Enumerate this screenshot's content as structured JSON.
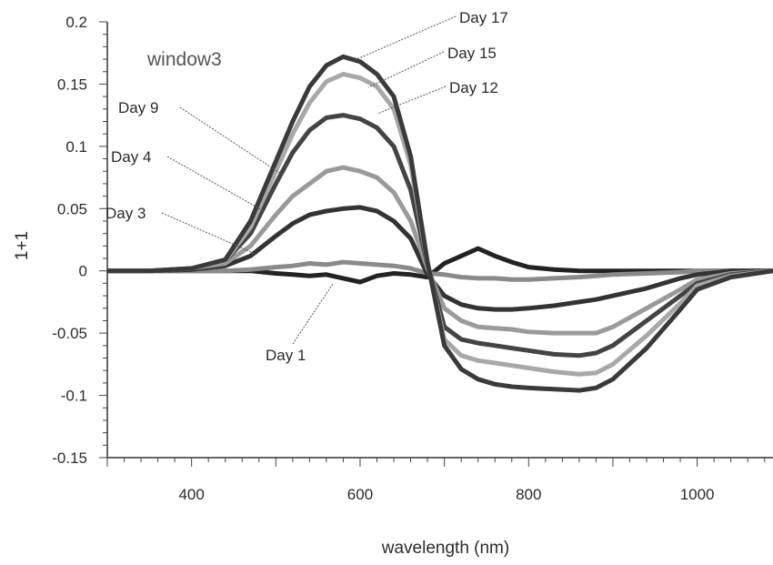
{
  "chart_data": {
    "type": "line",
    "title": "",
    "annotation": "window3",
    "xlabel": "wavelength (nm)",
    "ylabel": "1+1",
    "xlim": [
      300,
      1090
    ],
    "ylim": [
      -0.15,
      0.2
    ],
    "x_ticks": [
      400,
      600,
      800,
      1000
    ],
    "y_ticks": [
      -0.15,
      -0.1,
      -0.05,
      0,
      0.05,
      0.1,
      0.15,
      0.2
    ],
    "y_tick_labels": [
      "-0.15",
      "-0.1",
      "-0.05",
      "0",
      "0.05",
      "0.1",
      "0.15",
      "0.2"
    ],
    "grid": false,
    "x": [
      300,
      350,
      400,
      440,
      470,
      500,
      520,
      540,
      560,
      580,
      600,
      620,
      640,
      660,
      680,
      700,
      720,
      740,
      760,
      780,
      800,
      830,
      860,
      880,
      900,
      940,
      980,
      1000,
      1040,
      1090
    ],
    "series": [
      {
        "name": "Day 1",
        "color": "#222222",
        "values": [
          0,
          0,
          0,
          0,
          0,
          -0.002,
          -0.003,
          -0.004,
          -0.003,
          -0.006,
          -0.009,
          -0.004,
          -0.002,
          -0.003,
          -0.005,
          0.006,
          0.012,
          0.018,
          0.012,
          0.007,
          0.003,
          0.001,
          0,
          0,
          0,
          0,
          0,
          0,
          0,
          0
        ]
      },
      {
        "name": "Day 3",
        "color": "#8a8a8a",
        "values": [
          0,
          0,
          0,
          0,
          0.001,
          0.003,
          0.004,
          0.006,
          0.005,
          0.007,
          0.006,
          0.005,
          0.004,
          0.002,
          -0.002,
          -0.003,
          -0.005,
          -0.006,
          -0.006,
          -0.007,
          -0.007,
          -0.006,
          -0.005,
          -0.004,
          -0.003,
          -0.002,
          -0.001,
          0,
          0,
          0
        ]
      },
      {
        "name": "Day 4",
        "color": "#333333",
        "values": [
          0,
          0,
          0.001,
          0.004,
          0.012,
          0.028,
          0.038,
          0.045,
          0.048,
          0.05,
          0.051,
          0.048,
          0.04,
          0.026,
          -0.003,
          -0.02,
          -0.027,
          -0.03,
          -0.031,
          -0.031,
          -0.03,
          -0.028,
          -0.025,
          -0.023,
          -0.02,
          -0.014,
          -0.006,
          -0.003,
          0,
          0
        ]
      },
      {
        "name": "Day 9",
        "color": "#9a9a9a",
        "values": [
          0,
          0,
          0.002,
          0.006,
          0.02,
          0.045,
          0.06,
          0.07,
          0.08,
          0.083,
          0.08,
          0.075,
          0.063,
          0.04,
          0.002,
          -0.03,
          -0.04,
          -0.045,
          -0.046,
          -0.047,
          -0.049,
          -0.05,
          -0.05,
          -0.05,
          -0.045,
          -0.03,
          -0.015,
          -0.007,
          -0.002,
          0
        ]
      },
      {
        "name": "Day 12",
        "color": "#444444",
        "values": [
          0,
          0,
          0.002,
          0.008,
          0.03,
          0.07,
          0.095,
          0.113,
          0.123,
          0.125,
          0.122,
          0.115,
          0.1,
          0.065,
          0.005,
          -0.045,
          -0.055,
          -0.058,
          -0.06,
          -0.062,
          -0.064,
          -0.067,
          -0.068,
          -0.066,
          -0.06,
          -0.04,
          -0.02,
          -0.01,
          -0.003,
          0
        ]
      },
      {
        "name": "Day 15",
        "color": "#a8a8a8",
        "values": [
          0,
          0,
          0.002,
          0.008,
          0.035,
          0.08,
          0.11,
          0.135,
          0.152,
          0.158,
          0.155,
          0.148,
          0.13,
          0.085,
          0.006,
          -0.055,
          -0.068,
          -0.072,
          -0.074,
          -0.076,
          -0.078,
          -0.081,
          -0.083,
          -0.082,
          -0.075,
          -0.052,
          -0.026,
          -0.012,
          -0.004,
          0
        ]
      },
      {
        "name": "Day 17",
        "color": "#3a3a3a",
        "values": [
          0,
          0,
          0.002,
          0.009,
          0.04,
          0.088,
          0.12,
          0.148,
          0.165,
          0.172,
          0.168,
          0.158,
          0.14,
          0.092,
          0.007,
          -0.06,
          -0.079,
          -0.087,
          -0.091,
          -0.093,
          -0.094,
          -0.095,
          -0.096,
          -0.094,
          -0.087,
          -0.062,
          -0.031,
          -0.015,
          -0.005,
          0
        ]
      }
    ]
  }
}
